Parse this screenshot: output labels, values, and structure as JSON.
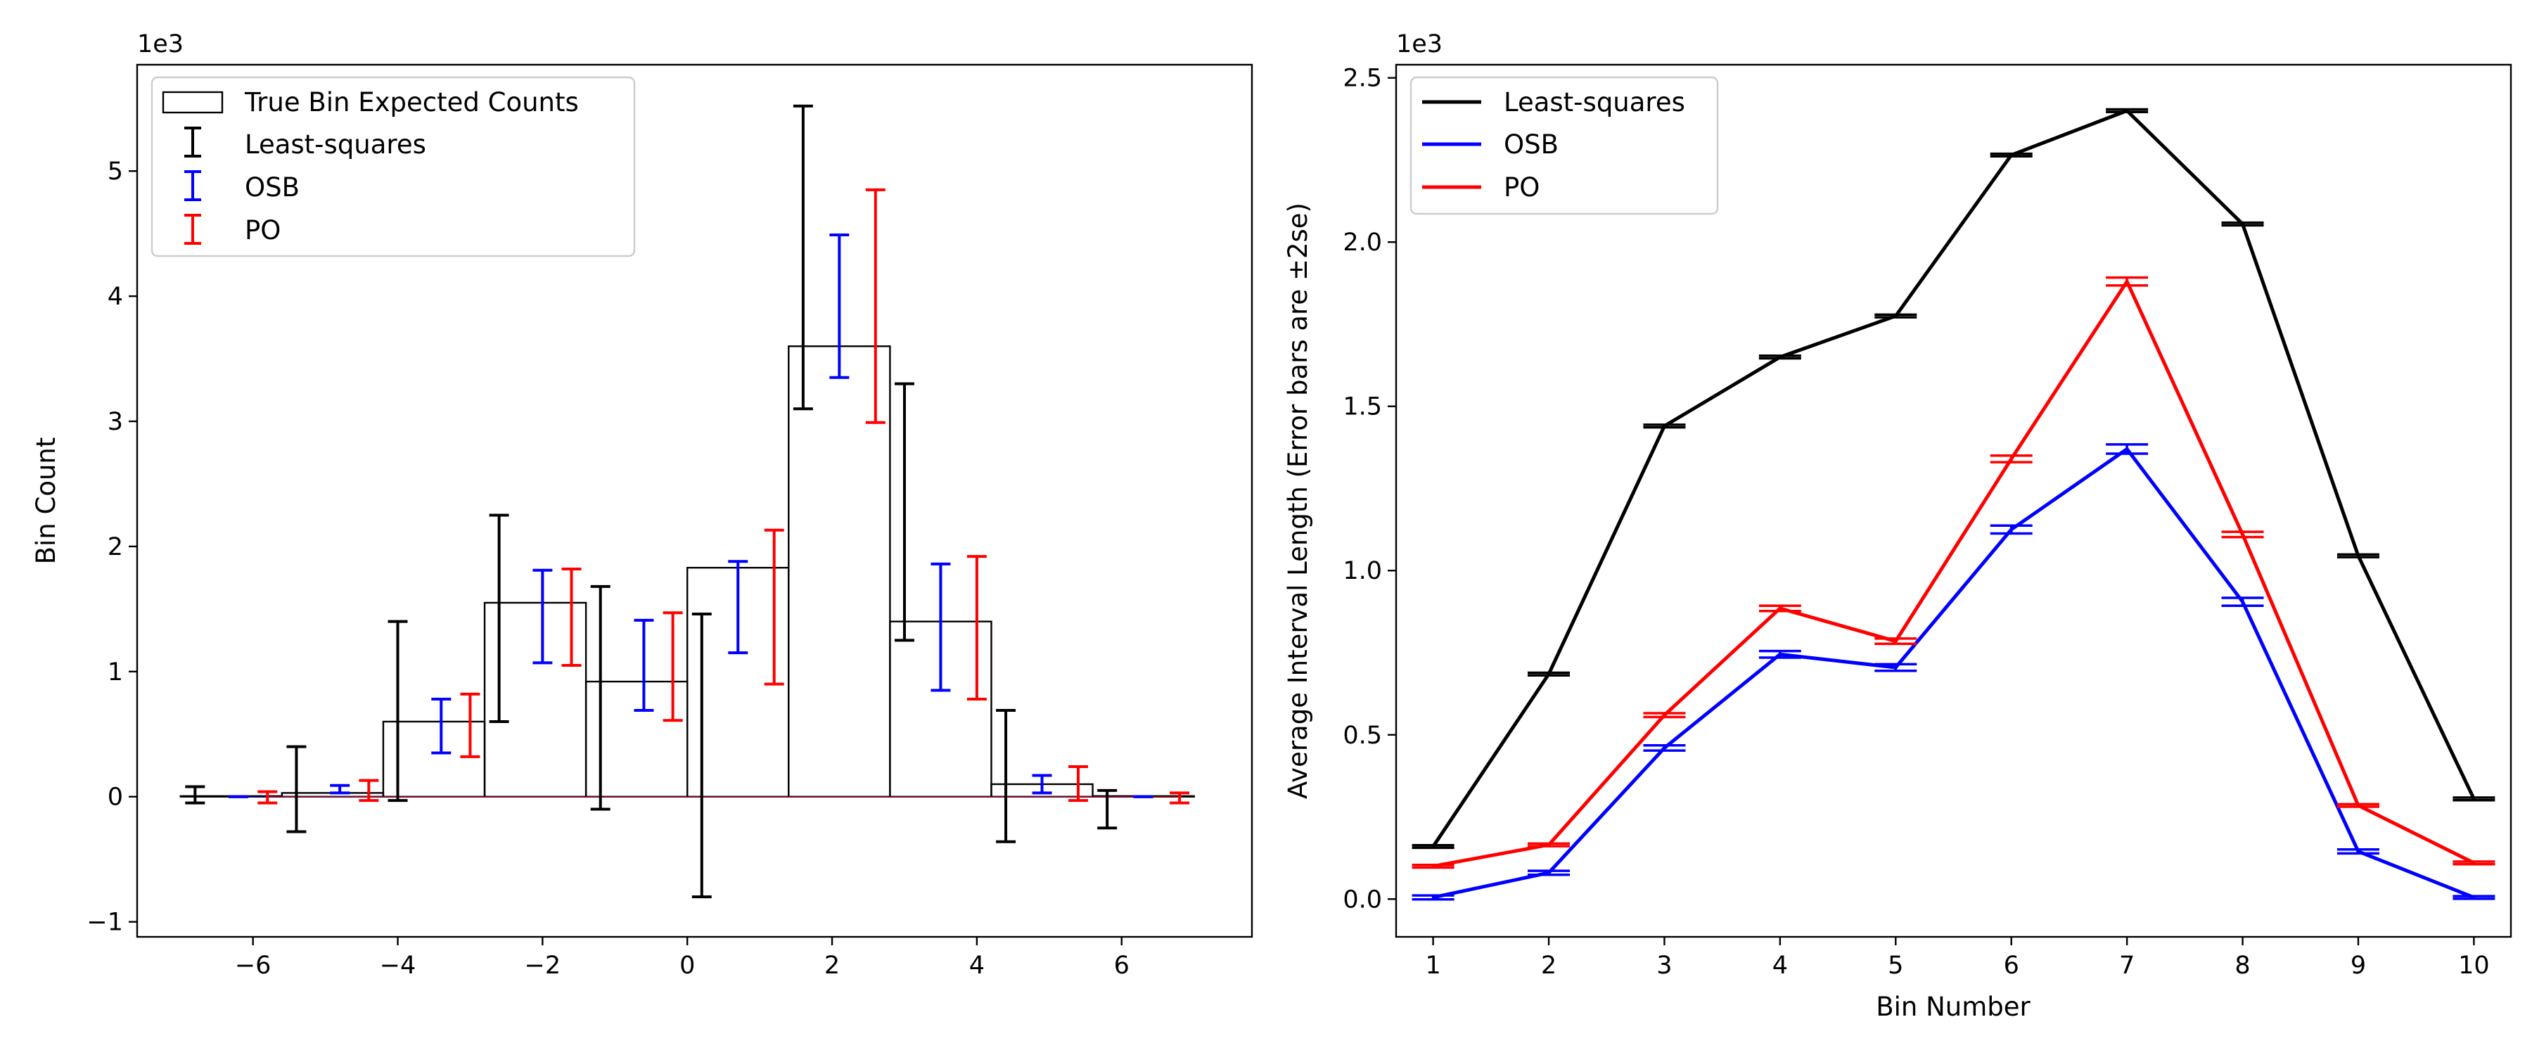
{
  "chart_data": [
    {
      "type": "bar",
      "title": "",
      "xlabel": "",
      "ylabel": "Bin Count",
      "offset_label": "1e3",
      "xlim": [
        -7.6,
        7.8
      ],
      "ylim": [
        -1.12,
        5.85
      ],
      "xticks": [
        -6,
        -4,
        -2,
        0,
        2,
        4,
        6
      ],
      "yticks": [
        -1,
        0,
        1,
        2,
        3,
        4,
        5
      ],
      "xticklabels": [
        "−6",
        "−4",
        "−2",
        "0",
        "2",
        "4",
        "6"
      ],
      "yticklabels": [
        "−1",
        "0",
        "1",
        "2",
        "3",
        "4",
        "5"
      ],
      "legend": {
        "position": "top-left",
        "entries": [
          {
            "label": "True Bin Expected Counts",
            "kind": "box",
            "color": "#000000"
          },
          {
            "label": "Least-squares",
            "kind": "errorbar",
            "color": "#000000"
          },
          {
            "label": "OSB",
            "kind": "errorbar",
            "color": "#0000ff"
          },
          {
            "label": "PO",
            "kind": "errorbar",
            "color": "#ff0000"
          }
        ]
      },
      "bins": {
        "edges": [
          -7,
          -5.6,
          -4.2,
          -2.8,
          -1.4,
          0,
          1.4,
          2.8,
          4.2,
          5.6,
          7
        ],
        "expected_counts": [
          0.005,
          0.03,
          0.6,
          1.55,
          0.92,
          1.83,
          3.6,
          1.4,
          0.1,
          0.005
        ]
      },
      "series": [
        {
          "name": "Least-squares",
          "color": "#000000",
          "x": [
            -6.8,
            -5.4,
            -4.0,
            -2.6,
            -1.2,
            0.2,
            1.6,
            3.0,
            4.4,
            5.8
          ],
          "low": [
            -0.05,
            -0.28,
            -0.03,
            0.6,
            -0.1,
            -0.8,
            3.1,
            1.25,
            -0.36,
            -0.25
          ],
          "high": [
            0.08,
            0.4,
            1.4,
            2.25,
            1.68,
            1.46,
            5.52,
            3.3,
            0.69,
            0.05
          ]
        },
        {
          "name": "OSB",
          "color": "#0000ff",
          "x": [
            -6.2,
            -4.8,
            -3.4,
            -2.0,
            -0.6,
            0.7,
            2.1,
            3.5,
            4.9,
            6.3
          ],
          "low": [
            0.0,
            0.03,
            0.35,
            1.07,
            0.69,
            1.15,
            3.35,
            0.85,
            0.03,
            0.0
          ],
          "high": [
            0.0,
            0.09,
            0.78,
            1.81,
            1.41,
            1.88,
            4.49,
            1.86,
            0.17,
            0.0
          ]
        },
        {
          "name": "PO",
          "color": "#ff0000",
          "x": [
            -5.8,
            -4.4,
            -3.0,
            -1.6,
            -0.2,
            1.2,
            2.6,
            4.0,
            5.4,
            6.8
          ],
          "low": [
            -0.05,
            -0.03,
            0.32,
            1.05,
            0.61,
            0.9,
            2.99,
            0.78,
            -0.03,
            -0.05
          ],
          "high": [
            0.04,
            0.13,
            0.82,
            1.82,
            1.47,
            2.13,
            4.85,
            1.92,
            0.24,
            0.03
          ]
        }
      ]
    },
    {
      "type": "line",
      "title": "",
      "xlabel": "Bin Number",
      "ylabel": "Average Interval Length (Error bars are ±2se)",
      "offset_label": "1e3",
      "xlim": [
        0.68,
        10.32
      ],
      "ylim": [
        -0.115,
        2.54
      ],
      "xticks": [
        1,
        2,
        3,
        4,
        5,
        6,
        7,
        8,
        9,
        10
      ],
      "yticks": [
        0.0,
        0.5,
        1.0,
        1.5,
        2.0,
        2.5
      ],
      "xticklabels": [
        "1",
        "2",
        "3",
        "4",
        "5",
        "6",
        "7",
        "8",
        "9",
        "10"
      ],
      "yticklabels": [
        "0.0",
        "0.5",
        "1.0",
        "1.5",
        "2.0",
        "2.5"
      ],
      "legend": {
        "position": "top-left",
        "entries": [
          {
            "label": "Least-squares",
            "kind": "line",
            "color": "#000000"
          },
          {
            "label": "OSB",
            "kind": "line",
            "color": "#0000ff"
          },
          {
            "label": "PO",
            "kind": "line",
            "color": "#ff0000"
          }
        ]
      },
      "series": [
        {
          "name": "Least-squares",
          "color": "#000000",
          "x": [
            1,
            2,
            3,
            4,
            5,
            6,
            7,
            8,
            9,
            10
          ],
          "values": [
            0.16,
            0.685,
            1.44,
            1.65,
            1.775,
            2.265,
            2.4,
            2.055,
            1.045,
            0.305
          ],
          "err": [
            0.004,
            0.004,
            0.004,
            0.004,
            0.004,
            0.004,
            0.004,
            0.004,
            0.004,
            0.004
          ]
        },
        {
          "name": "OSB",
          "color": "#0000ff",
          "x": [
            1,
            2,
            3,
            4,
            5,
            6,
            7,
            8,
            9,
            10
          ],
          "values": [
            0.005,
            0.08,
            0.46,
            0.745,
            0.705,
            1.125,
            1.37,
            0.905,
            0.145,
            0.005
          ],
          "err": [
            0.006,
            0.006,
            0.008,
            0.01,
            0.01,
            0.012,
            0.014,
            0.012,
            0.006,
            0.004
          ]
        },
        {
          "name": "PO",
          "color": "#ff0000",
          "x": [
            1,
            2,
            3,
            4,
            5,
            6,
            7,
            8,
            9,
            10
          ],
          "values": [
            0.1,
            0.165,
            0.56,
            0.885,
            0.785,
            1.34,
            1.88,
            1.11,
            0.285,
            0.11
          ],
          "err": [
            0.004,
            0.004,
            0.006,
            0.008,
            0.008,
            0.01,
            0.012,
            0.008,
            0.004,
            0.004
          ]
        }
      ]
    }
  ]
}
